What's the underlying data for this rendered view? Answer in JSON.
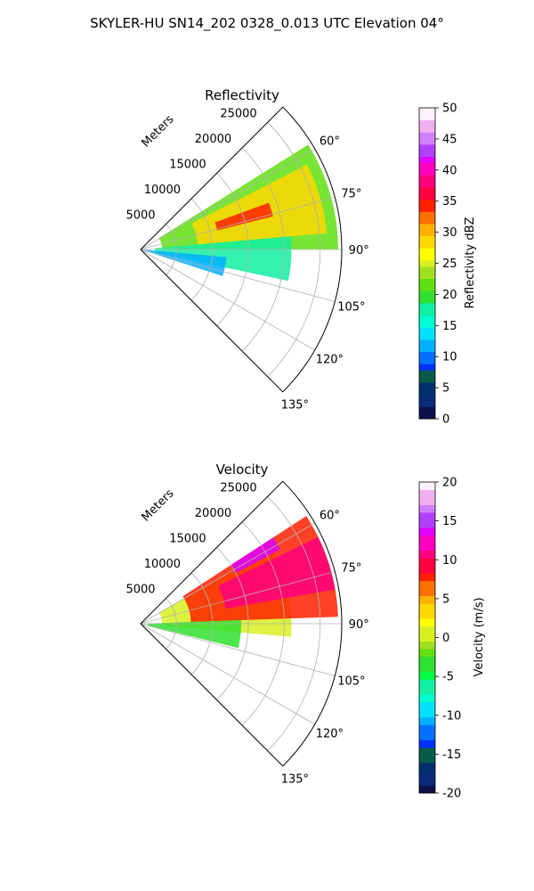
{
  "figure": {
    "suptitle": "SKYLER-HU  SN14_202  0328_0.013 UTC Elevation 04°"
  },
  "chart_data": [
    {
      "type": "polar-sector",
      "title": "Reflectivity",
      "range_axis_label": "Meters",
      "range_ticks": [
        5000,
        10000,
        15000,
        20000,
        25000
      ],
      "range_max": 28000,
      "azimuth_range_deg": [
        45,
        135
      ],
      "azimuth_ticks_deg": [
        60,
        75,
        90,
        105,
        120,
        135
      ],
      "azimuth_tick_labels": [
        "60°",
        "75°",
        "90°",
        "105°",
        "120°",
        "135°"
      ],
      "grid": true,
      "colorbar": {
        "label": "Reflectivity dBZ",
        "range": [
          0,
          50
        ],
        "ticks": [
          0,
          5,
          10,
          15,
          20,
          25,
          30,
          35,
          40,
          45,
          50
        ],
        "levels": 51,
        "palette": [
          "#0b0f4a",
          "#0a2a7a",
          "#00306a",
          "#0a5a4a",
          "#0030ff",
          "#0070ff",
          "#00b0ff",
          "#00e0ff",
          "#00ffd0",
          "#10f0a0",
          "#30e030",
          "#60e010",
          "#a0e020",
          "#d8f020",
          "#ffff00",
          "#ffd800",
          "#ffb000",
          "#ff7000",
          "#ff2000",
          "#ff0040",
          "#ff0080",
          "#ff00c0",
          "#e000ff",
          "#b040ff",
          "#d080ff",
          "#f0b0f0",
          "#fff0ff"
        ]
      },
      "echo_regions": [
        {
          "level": 22,
          "az": [
            58,
            90
          ],
          "range": [
            3000,
            27500
          ]
        },
        {
          "level": 28,
          "az": [
            63,
            85
          ],
          "range": [
            8000,
            26000
          ]
        },
        {
          "level": 35,
          "az": [
            70,
            76
          ],
          "range": [
            11000,
            19000
          ]
        },
        {
          "level": 18,
          "az": [
            85,
            102
          ],
          "range": [
            2000,
            21000
          ]
        },
        {
          "level": 12,
          "az": [
            95,
            108
          ],
          "range": [
            500,
            12000
          ]
        }
      ]
    },
    {
      "type": "polar-sector",
      "title": "Velocity",
      "range_axis_label": "Meters",
      "range_ticks": [
        5000,
        10000,
        15000,
        20000,
        25000
      ],
      "range_max": 28000,
      "azimuth_range_deg": [
        45,
        135
      ],
      "azimuth_ticks_deg": [
        60,
        75,
        90,
        105,
        120,
        135
      ],
      "azimuth_tick_labels": [
        "60°",
        "75°",
        "90°",
        "105°",
        "120°",
        "135°"
      ],
      "grid": true,
      "colorbar": {
        "label": "Velocity (m/s)",
        "range": [
          -20,
          20
        ],
        "ticks": [
          -20,
          -15,
          -10,
          -5,
          0,
          5,
          10,
          15,
          20
        ],
        "levels": 41,
        "palette": [
          "#0b0f4a",
          "#0a2a7a",
          "#00306a",
          "#0a5a4a",
          "#0030ff",
          "#0070ff",
          "#00b0ff",
          "#00e0ff",
          "#00ffd0",
          "#10f0a0",
          "#00ff40",
          "#30e030",
          "#60e010",
          "#a0e020",
          "#d8f020",
          "#ffff00",
          "#ffd800",
          "#ffb000",
          "#ff7000",
          "#ff2000",
          "#ff0040",
          "#ff0080",
          "#ff00c0",
          "#e000ff",
          "#b040ff",
          "#d080ff",
          "#f0b0f0",
          "#fff0ff"
        ]
      },
      "echo_regions": [
        {
          "level": 1,
          "az": [
            60,
            95
          ],
          "range": [
            3000,
            21000
          ]
        },
        {
          "level": 8,
          "az": [
            57,
            88
          ],
          "range": [
            7000,
            27500
          ]
        },
        {
          "level": 11,
          "az": [
            64,
            80
          ],
          "range": [
            12000,
            27500
          ]
        },
        {
          "level": 14,
          "az": [
            57,
            62
          ],
          "range": [
            15000,
            22000
          ]
        },
        {
          "level": -4,
          "az": [
            88,
            104
          ],
          "range": [
            1000,
            14000
          ]
        }
      ]
    }
  ]
}
